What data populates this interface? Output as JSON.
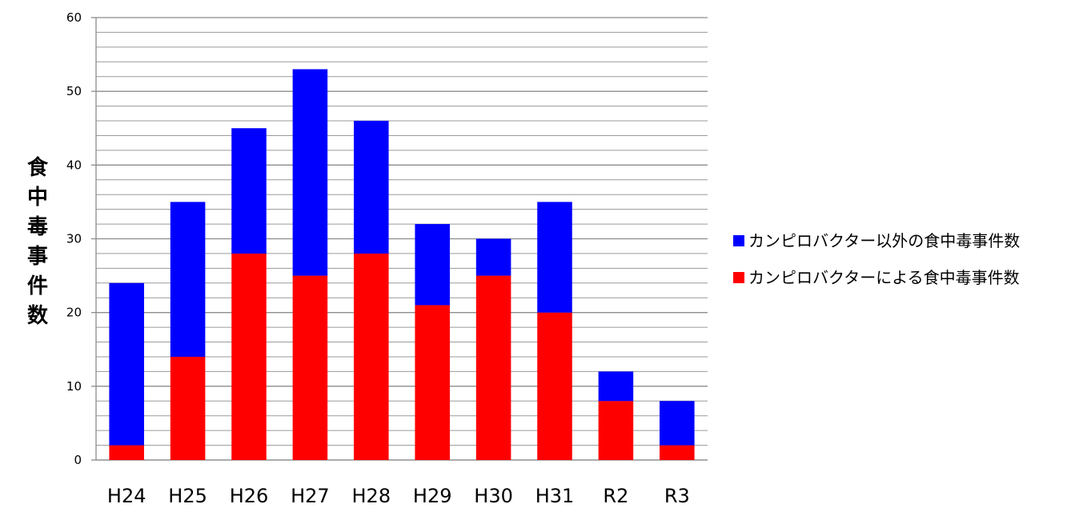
{
  "chart_data": {
    "type": "bar",
    "stacked": true,
    "ylabel": "食中毒事件数",
    "xlabel": "",
    "title": "",
    "ylim": [
      0,
      60
    ],
    "y_major_ticks": [
      0,
      10,
      20,
      30,
      40,
      50,
      60
    ],
    "y_minor_step": 2,
    "grid": true,
    "legend_position": "right",
    "categories": [
      "H24",
      "H25",
      "H26",
      "H27",
      "H28",
      "H29",
      "H30",
      "H31",
      "R2",
      "R3"
    ],
    "series": [
      {
        "name": "カンピロバクターによる食中毒事件数",
        "color": "#ff0000",
        "values": [
          2,
          14,
          28,
          25,
          28,
          21,
          25,
          20,
          8,
          2
        ]
      },
      {
        "name": "カンピロバクター以外の食中毒事件数",
        "color": "#0000ff",
        "values": [
          22,
          21,
          17,
          28,
          18,
          11,
          5,
          15,
          4,
          6
        ]
      }
    ],
    "legend_order": [
      1,
      0
    ]
  }
}
